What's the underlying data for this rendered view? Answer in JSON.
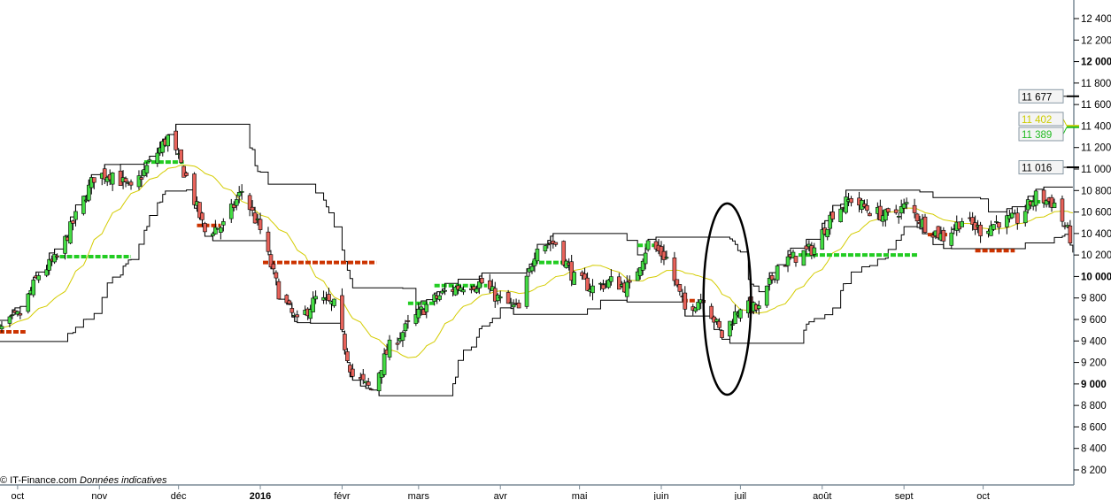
{
  "credit": {
    "source": "© IT-Finance.com",
    "note": "Données indicatives"
  },
  "chart_data": {
    "type": "candlestick",
    "title": "",
    "xlabel": "",
    "ylabel": "",
    "ylim": [
      8200,
      12400
    ],
    "y_ticks": [
      8200,
      8400,
      8600,
      8800,
      9000,
      9200,
      9400,
      9600,
      9800,
      10000,
      10200,
      10400,
      10600,
      10800,
      11000,
      11200,
      11400,
      11600,
      11800,
      12000,
      12200,
      12400
    ],
    "y_tick_labels": [
      "8 200",
      "8 400",
      "8 600",
      "8 800",
      "9 000",
      "9 200",
      "9 400",
      "9 600",
      "9 800",
      "10 000",
      "10 200",
      "10 400",
      "10 600",
      "10 800",
      "11 000",
      "11 200",
      "11 400",
      "11 600",
      "11 800",
      "12 000",
      "12 200",
      "12 400"
    ],
    "y_bold_ticks": [
      9000,
      10000,
      12000
    ],
    "x_ticks": [
      {
        "date": "2015-10-01",
        "label": "oct"
      },
      {
        "date": "2015-11-01",
        "label": "nov"
      },
      {
        "date": "2015-12-01",
        "label": "déc"
      },
      {
        "date": "2016-01-01",
        "label": "2016",
        "bold": true
      },
      {
        "date": "2016-02-01",
        "label": "févr"
      },
      {
        "date": "2016-03-01",
        "label": "mars"
      },
      {
        "date": "2016-04-01",
        "label": "avr"
      },
      {
        "date": "2016-05-01",
        "label": "mai"
      },
      {
        "date": "2016-06-01",
        "label": "juin"
      },
      {
        "date": "2016-07-01",
        "label": "juil"
      },
      {
        "date": "2016-08-01",
        "label": "août"
      },
      {
        "date": "2016-09-01",
        "label": "sept"
      },
      {
        "date": "2016-10-01",
        "label": "oct"
      }
    ],
    "weekly_close_approx": [
      [
        "2015-09-25",
        9510
      ],
      [
        "2015-10-02",
        9650
      ],
      [
        "2015-10-09",
        10020
      ],
      [
        "2015-10-16",
        10170
      ],
      [
        "2015-10-23",
        10555
      ],
      [
        "2015-10-30",
        10925
      ],
      [
        "2015-11-06",
        10965
      ],
      [
        "2015-11-13",
        10800
      ],
      [
        "2015-11-20",
        11050
      ],
      [
        "2015-11-27",
        11295
      ],
      [
        "2015-12-04",
        10925
      ],
      [
        "2015-12-11",
        10415
      ],
      [
        "2015-12-18",
        10475
      ],
      [
        "2015-12-25",
        10800
      ],
      [
        "2016-01-01",
        10430
      ],
      [
        "2016-01-08",
        9855
      ],
      [
        "2016-01-15",
        9565
      ],
      [
        "2016-01-22",
        9790
      ],
      [
        "2016-01-29",
        9730
      ],
      [
        "2016-02-05",
        9075
      ],
      [
        "2016-02-12",
        8950
      ],
      [
        "2016-02-19",
        9345
      ],
      [
        "2016-02-26",
        9540
      ],
      [
        "2016-03-04",
        9730
      ],
      [
        "2016-03-11",
        9855
      ],
      [
        "2016-03-18",
        9920
      ],
      [
        "2016-03-25",
        9940
      ],
      [
        "2016-04-01",
        9775
      ],
      [
        "2016-04-08",
        9690
      ],
      [
        "2016-04-15",
        10310
      ],
      [
        "2016-04-22",
        10310
      ],
      [
        "2016-04-29",
        9980
      ],
      [
        "2016-05-06",
        9895
      ],
      [
        "2016-05-13",
        9955
      ],
      [
        "2016-05-20",
        9895
      ],
      [
        "2016-05-27",
        10310
      ],
      [
        "2016-06-03",
        10170
      ],
      [
        "2016-06-10",
        9690
      ],
      [
        "2016-06-17",
        9815
      ],
      [
        "2016-06-24",
        9445
      ],
      [
        "2016-07-01",
        9730
      ],
      [
        "2016-07-08",
        9690
      ],
      [
        "2016-07-15",
        10100
      ],
      [
        "2016-07-22",
        10185
      ],
      [
        "2016-07-29",
        10265
      ],
      [
        "2016-08-05",
        10595
      ],
      [
        "2016-08-12",
        10720
      ],
      [
        "2016-08-19",
        10615
      ],
      [
        "2016-08-26",
        10555
      ],
      [
        "2016-09-02",
        10660
      ],
      [
        "2016-09-09",
        10475
      ],
      [
        "2016-09-16",
        10365
      ],
      [
        "2016-09-23",
        10530
      ],
      [
        "2016-09-30",
        10430
      ],
      [
        "2016-10-07",
        10515
      ],
      [
        "2016-10-14",
        10530
      ],
      [
        "2016-10-21",
        10745
      ],
      [
        "2016-10-28",
        10680
      ],
      [
        "2016-11-04",
        10310
      ]
    ],
    "moving_average": {
      "color": "#d4cc00",
      "last_value": 11402
    },
    "channel": {
      "color": "#000000",
      "upper_last": 11677,
      "lower_last": 11016
    },
    "last_price": 11389,
    "signal_levels": [
      {
        "start": "2015-09-24",
        "end": "2015-10-04",
        "value": 9485,
        "color": "#cc3300"
      },
      {
        "start": "2015-10-17",
        "end": "2015-11-13",
        "value": 10185,
        "color": "#22cc22"
      },
      {
        "start": "2015-11-18",
        "end": "2015-12-03",
        "value": 11065,
        "color": "#22cc22"
      },
      {
        "start": "2015-12-08",
        "end": "2015-12-17",
        "value": 10475,
        "color": "#cc3300"
      },
      {
        "start": "2016-01-02",
        "end": "2016-02-14",
        "value": 10130,
        "color": "#cc3300"
      },
      {
        "start": "2016-02-26",
        "end": "2016-03-07",
        "value": 9750,
        "color": "#22cc22"
      },
      {
        "start": "2016-03-07",
        "end": "2016-03-27",
        "value": 9915,
        "color": "#22cc22"
      },
      {
        "start": "2016-04-13",
        "end": "2016-04-26",
        "value": 10130,
        "color": "#22cc22"
      },
      {
        "start": "2016-05-23",
        "end": "2016-05-30",
        "value": 10290,
        "color": "#22cc22"
      },
      {
        "start": "2016-06-09",
        "end": "2016-06-14",
        "value": 9775,
        "color": "#cc3300"
      },
      {
        "start": "2016-07-23",
        "end": "2016-09-06",
        "value": 10200,
        "color": "#22cc22"
      },
      {
        "start": "2016-09-10",
        "end": "2016-09-18",
        "value": 10390,
        "color": "#cc3300"
      },
      {
        "start": "2016-09-28",
        "end": "2016-10-13",
        "value": 10240,
        "color": "#cc3300"
      },
      {
        "start": "2016-10-18",
        "end": "2016-10-27",
        "value": 10695,
        "color": "#22cc22"
      }
    ],
    "price_tags": [
      {
        "value": 11677,
        "label": "11 677",
        "color": "#000000",
        "boxed": true
      },
      {
        "value": 11402,
        "label": "11 402",
        "color": "#cccc00",
        "boxed": true
      },
      {
        "value": 11389,
        "label": "11 389",
        "color": "#22bb22",
        "boxed": true
      },
      {
        "value": 11016,
        "label": "11 016",
        "color": "#000000",
        "boxed": true
      }
    ],
    "annotation": {
      "type": "ellipse",
      "start": "2016-06-17",
      "end": "2016-07-05",
      "low": 8900,
      "high": 10680
    },
    "colors": {
      "up": "#44dd44",
      "down": "#e8625a",
      "axis": "#7a8a96"
    },
    "grid": false,
    "legend": "none"
  }
}
